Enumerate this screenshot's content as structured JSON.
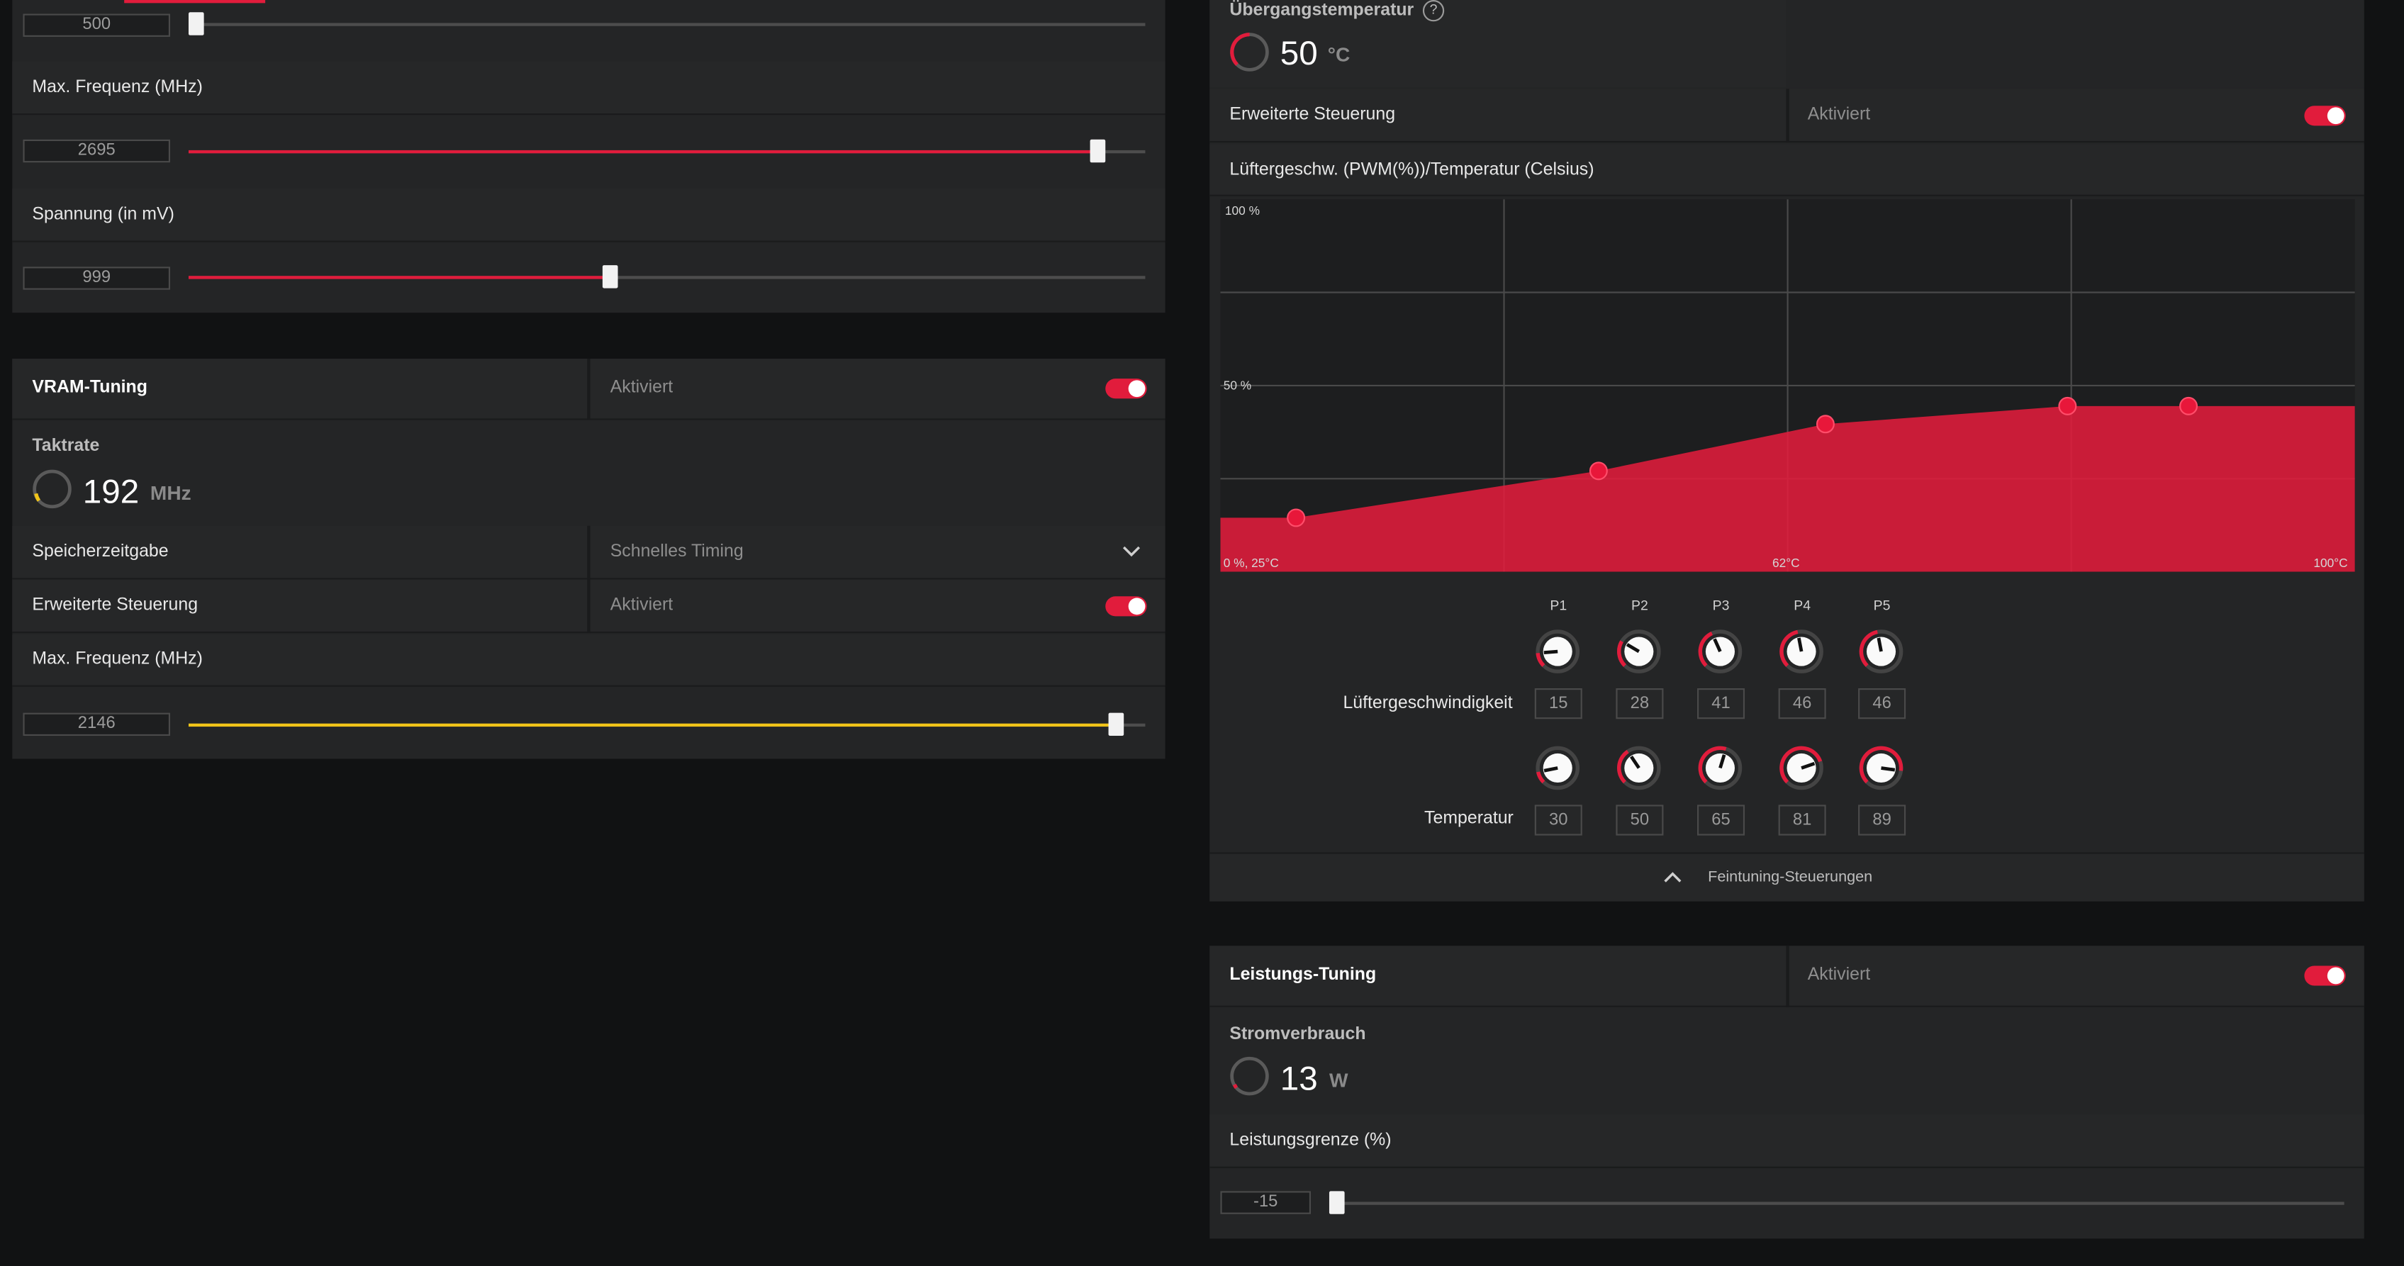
{
  "gpu": {
    "min_freq_value": "500",
    "min_freq_fraction": 0.0,
    "max_freq_label": "Max. Frequenz (MHz)",
    "max_freq_value": "2695",
    "max_freq_fraction": 0.95,
    "voltage_label": "Spannung (in mV)",
    "voltage_value": "999",
    "voltage_fraction": 0.44
  },
  "vram": {
    "title": "VRAM-Tuning",
    "status": "Aktiviert",
    "clock_label": "Taktrate",
    "clock_value": "192",
    "clock_unit": "MHz",
    "timing_label": "Speicherzeitgabe",
    "timing_value": "Schnelles Timing",
    "advanced_label": "Erweiterte Steuerung",
    "advanced_status": "Aktiviert",
    "max_freq_label": "Max. Frequenz (MHz)",
    "max_freq_value": "2146",
    "max_freq_fraction": 0.97
  },
  "fan": {
    "junction_label": "Übergangstemperatur",
    "help_icon": "?",
    "temp_value": "50",
    "temp_unit": "°C",
    "advanced_label": "Erweiterte Steuerung",
    "advanced_status": "Aktiviert",
    "curve_title": "Lüftergeschw. (PWM(%))/Temperatur (Celsius)",
    "axis_top": "100 %",
    "axis_mid": "50 %",
    "axis_origin": "0 %, 25°C",
    "axis_center": "62°C",
    "axis_right": "100°C",
    "speed_row_label": "Lüftergeschwindigkeit",
    "temp_row_label": "Temperatur",
    "fine_tune_label": "Feintuning-Steuerungen",
    "points": [
      {
        "label": "P1",
        "speed": "15",
        "temp": "30"
      },
      {
        "label": "P2",
        "speed": "28",
        "temp": "50"
      },
      {
        "label": "P3",
        "speed": "41",
        "temp": "65"
      },
      {
        "label": "P4",
        "speed": "46",
        "temp": "81"
      },
      {
        "label": "P5",
        "speed": "46",
        "temp": "89"
      }
    ]
  },
  "power": {
    "title": "Leistungs-Tuning",
    "status": "Aktiviert",
    "consumption_label": "Stromverbrauch",
    "consumption_value": "13",
    "consumption_unit": "W",
    "limit_label": "Leistungsgrenze (%)",
    "limit_value": "-15",
    "limit_fraction": 0.0
  },
  "colors": {
    "accent_red": "#e11c3c",
    "accent_yellow": "#f0c419",
    "panel": "#242526",
    "background": "#111213"
  },
  "icons": {
    "dropdown": "chevron-down-icon",
    "collapse": "chevron-up-icon",
    "help": "question-circle-icon",
    "gauge": "gauge-ring-icon"
  }
}
